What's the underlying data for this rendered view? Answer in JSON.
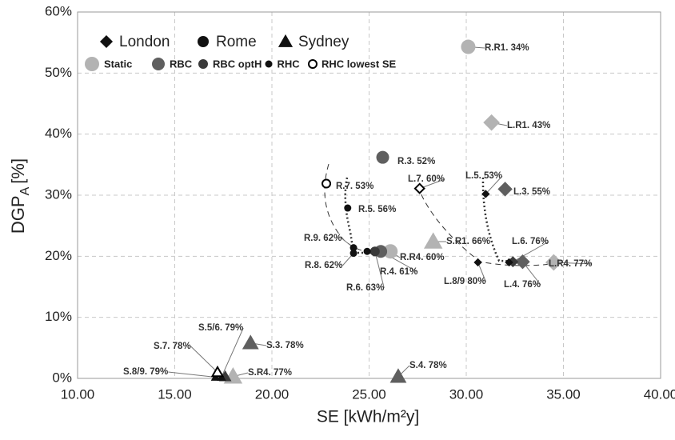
{
  "chart_data": {
    "type": "scatter",
    "x_label": "SE [kWh/m²y]",
    "y_label": {
      "main": "DGP",
      "sub": "A",
      "unit": "[%]"
    },
    "xlim": [
      10,
      40
    ],
    "xticks": [
      {
        "value": 10,
        "label": "10.00"
      },
      {
        "value": 15,
        "label": "15.00"
      },
      {
        "value": 20,
        "label": "20.00"
      },
      {
        "value": 25,
        "label": "25.00"
      },
      {
        "value": 30,
        "label": "30.00"
      },
      {
        "value": 35,
        "label": "35.00"
      },
      {
        "value": 40,
        "label": "40.00"
      }
    ],
    "ylim": [
      0,
      60
    ],
    "yticks": [
      {
        "value": 0,
        "label": "0%"
      },
      {
        "value": 10,
        "label": "10%"
      },
      {
        "value": 20,
        "label": "20%"
      },
      {
        "value": 30,
        "label": "30%"
      },
      {
        "value": 40,
        "label": "40%"
      },
      {
        "value": 50,
        "label": "50%"
      },
      {
        "value": 60,
        "label": "60%"
      }
    ],
    "grid": true,
    "cities": [
      {
        "name": "London",
        "marker": "diamond"
      },
      {
        "name": "Rome",
        "marker": "circle"
      },
      {
        "name": "Sydney",
        "marker": "triangle"
      }
    ],
    "series": [
      {
        "name": "Static",
        "color": "#b3b3b3",
        "size": 9,
        "city": [
          "Rome",
          "London",
          "London",
          "Sydney",
          "Rome",
          "Sydney"
        ],
        "x": [
          30.1,
          31.3,
          34.5,
          28.3,
          26.1,
          18.0
        ],
        "values": [
          54.3,
          41.9,
          19.0,
          22.4,
          20.8,
          0.3
        ],
        "labels": [
          "R.R1. 34%",
          "L.R1. 43%",
          "L.R4. 77%",
          "S.R1. 66%",
          "R.R4. 60%",
          "S.R4. 77%"
        ]
      },
      {
        "name": "RBC",
        "color": "#5f5f5f",
        "size": 8,
        "city": [
          "Rome",
          "London",
          "London",
          "Rome",
          "Sydney",
          "Sydney"
        ],
        "x": [
          25.7,
          32.0,
          32.9,
          25.6,
          18.9,
          26.5
        ],
        "values": [
          36.2,
          31.0,
          19.1,
          20.8,
          5.8,
          0.3
        ],
        "labels": [
          "R.3. 52%",
          "L.3. 55%",
          "L.4. 76%",
          "R.4. 61%",
          "S.3. 78%",
          "S.4. 78%"
        ]
      },
      {
        "name": "RBC optH",
        "color": "#3a3a3a",
        "size": 6,
        "city": [
          "London",
          "Rome",
          "Sydney"
        ],
        "x": [
          32.4,
          25.3,
          17.6
        ],
        "values": [
          19.1,
          20.8,
          0.3
        ],
        "labels": [
          "L.6. 76%",
          "R.6. 63%",
          null
        ]
      },
      {
        "name": "RHC",
        "color": "#111111",
        "size": 4.5,
        "city": [
          "London",
          "London",
          "London",
          "Rome",
          "Rome",
          "Rome",
          "Rome",
          "Sydney",
          "Sydney"
        ],
        "x": [
          31.0,
          30.6,
          32.2,
          23.9,
          24.2,
          24.2,
          24.9,
          17.4,
          17.1
        ],
        "values": [
          30.2,
          19.0,
          19.0,
          27.9,
          21.4,
          20.5,
          20.8,
          0.2,
          0.2
        ],
        "labels": [
          "L.5. 53%",
          "L.8/9  80%",
          null,
          "R.5. 56%",
          "R.9. 62%",
          "R.8. 62%",
          null,
          "S.5/6. 79%",
          "S.8/9. 79%"
        ]
      },
      {
        "name": "RHC lowest SE",
        "color": "#000000",
        "open": true,
        "size": 5,
        "city": [
          "Rome",
          "London",
          "Sydney"
        ],
        "x": [
          22.8,
          27.6,
          17.2
        ],
        "values": [
          31.9,
          31.1,
          1.0
        ],
        "labels": [
          "R.7. 53%",
          "L.7. 60%",
          "S.7. 78%"
        ]
      }
    ]
  }
}
